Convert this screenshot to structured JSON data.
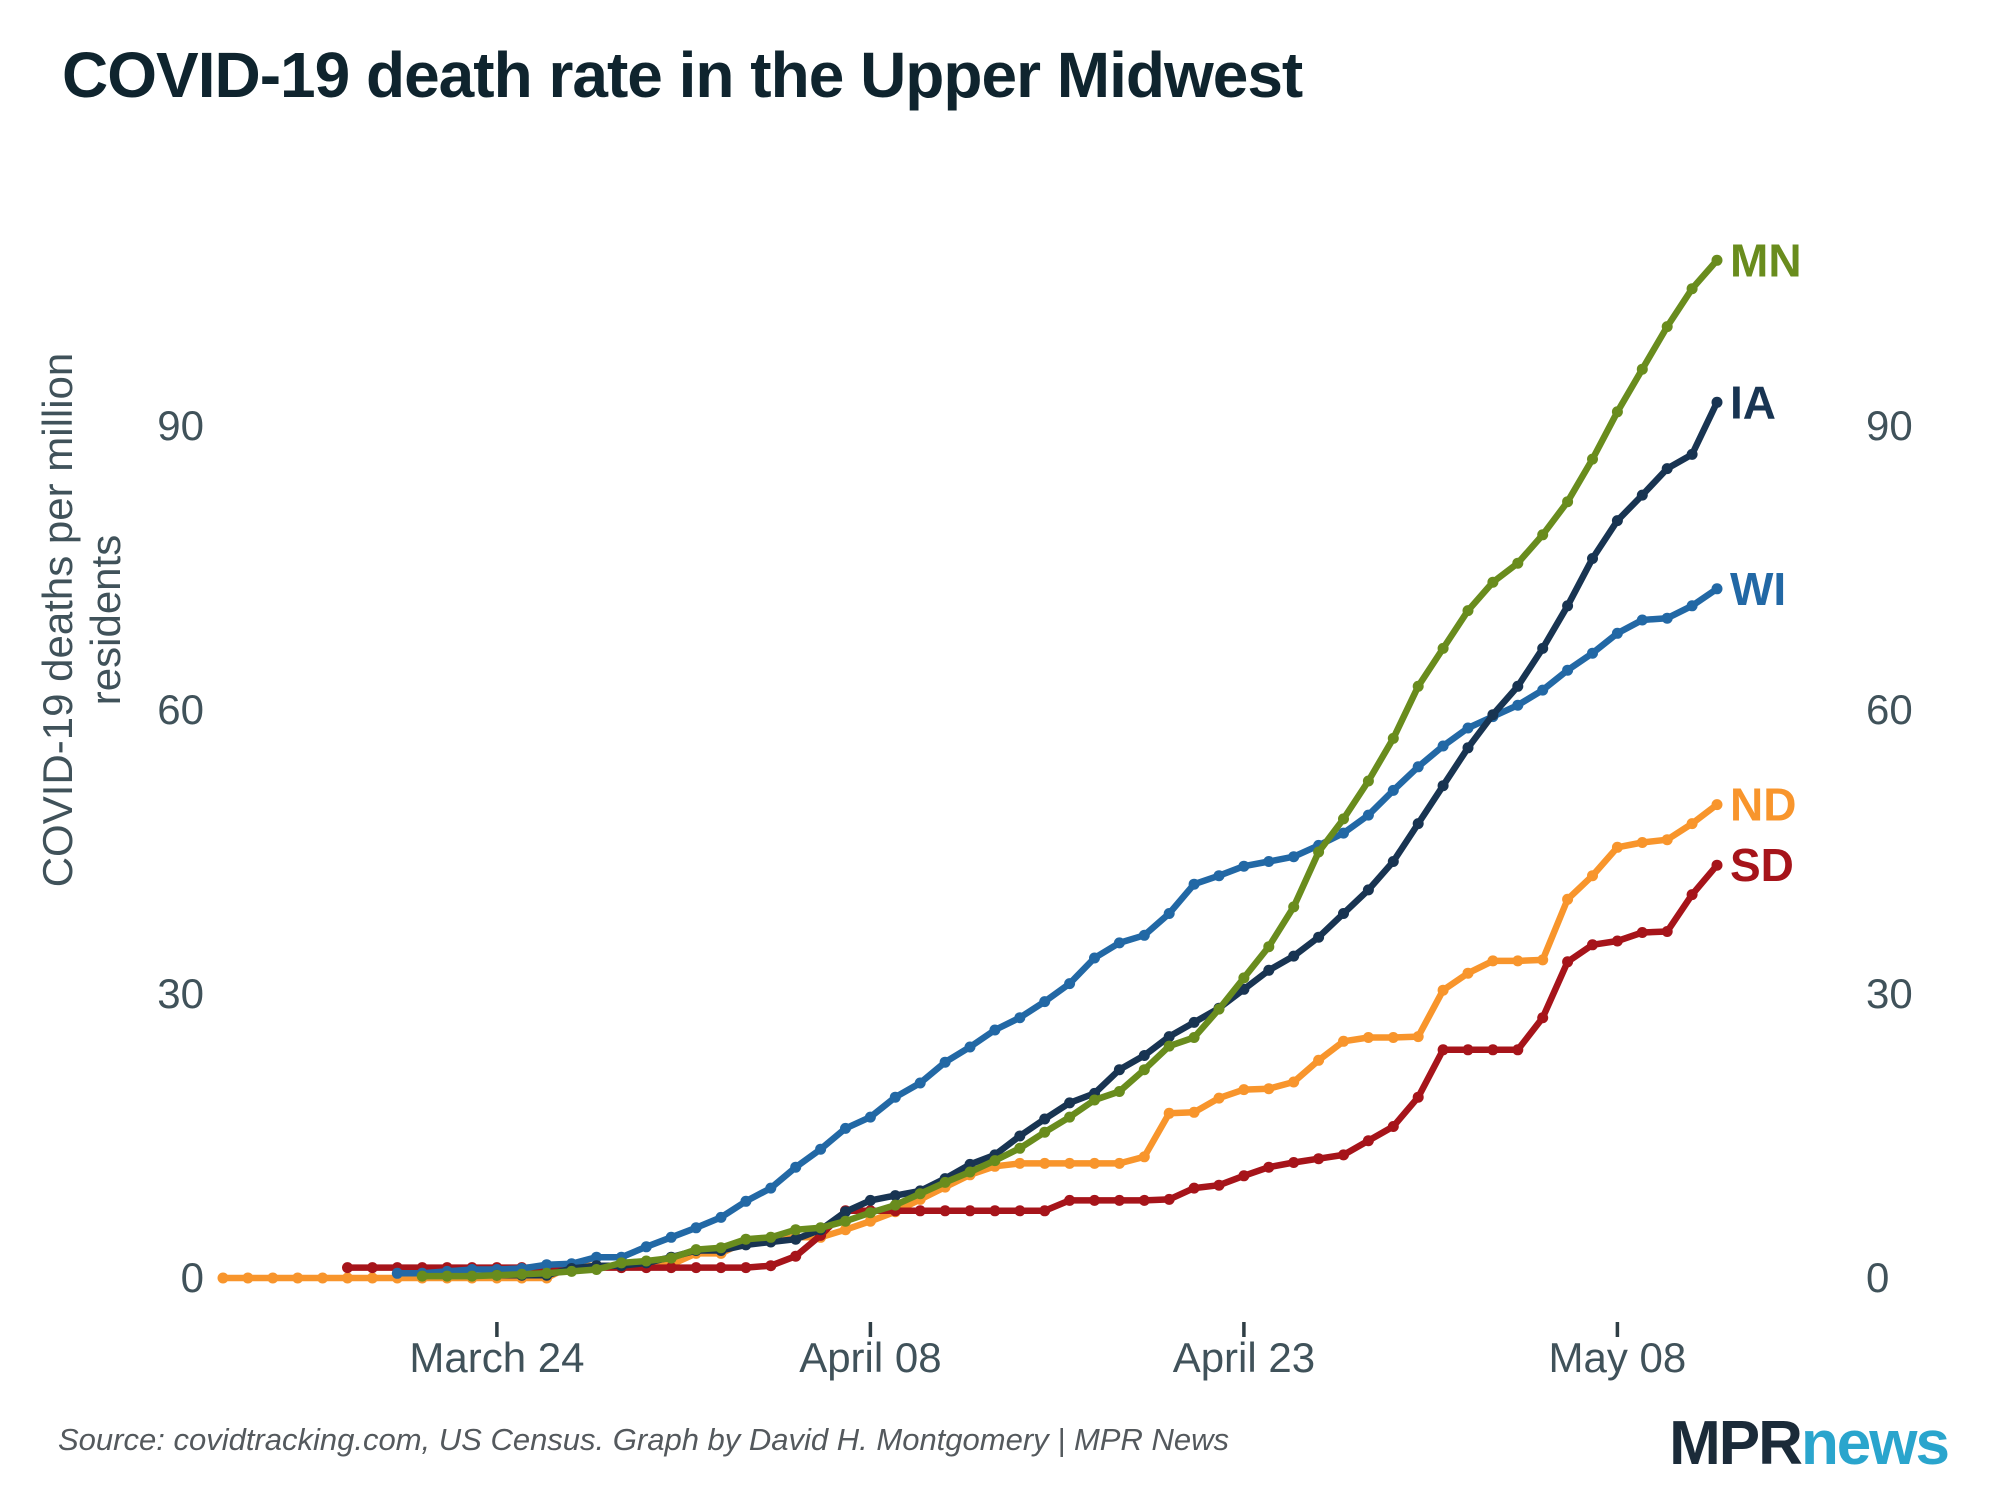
{
  "header": {
    "title": "COVID-19 death rate in the Upper Midwest"
  },
  "footer": {
    "source": "Source: covidtracking.com, US Census. Graph by David H. Montgomery | MPR News",
    "logo_mpr": "MPR",
    "logo_news": "news"
  },
  "colors": {
    "title": "#0f242e",
    "axis_text": "#40525a",
    "tick_mark": "#2f3e45",
    "source_text": "#54595d",
    "logo_mpr": "#1b2b39",
    "logo_news": "#2aa5cd"
  },
  "chart_data": {
    "type": "line",
    "title": "COVID-19 death rate in the Upper Midwest",
    "xlabel": "",
    "ylabel": "COVID-19 deaths per million residents",
    "y_ticks": [
      0,
      30,
      60,
      90
    ],
    "ylim": [
      0,
      113
    ],
    "grid": false,
    "legend_position": "end-of-line labels",
    "x_unit": "daily points, March 13 - May 12, 2020",
    "x_ticks": [
      {
        "label": "March 24",
        "day": 11
      },
      {
        "label": "April 08",
        "day": 26
      },
      {
        "label": "April 23",
        "day": 41
      },
      {
        "label": "May 08",
        "day": 56
      }
    ],
    "series": [
      {
        "name": "ND",
        "color": "#f8952c",
        "start_day": 0,
        "values": [
          0,
          0,
          0,
          0,
          0,
          0,
          0,
          0,
          0,
          0,
          0,
          0,
          0,
          0,
          1.3,
          1.3,
          1.3,
          1.3,
          1.4,
          2.6,
          2.6,
          3.9,
          3.9,
          4.3,
          4.3,
          5.1,
          6,
          7,
          8.3,
          9.6,
          10.9,
          11.8,
          12.1,
          12.1,
          12.1,
          12.1,
          12.1,
          12.8,
          17.4,
          17.5,
          19,
          19.9,
          20,
          20.7,
          23,
          25,
          25.4,
          25.4,
          25.5,
          30.4,
          32.2,
          33.5,
          33.5,
          33.6,
          40,
          42.5,
          45.5,
          46,
          46.3,
          48,
          50
        ]
      },
      {
        "name": "SD",
        "color": "#a6141a",
        "start_day": 5,
        "values": [
          1.1,
          1.1,
          1.1,
          1.1,
          1.1,
          1.1,
          1.1,
          1.1,
          1.1,
          1.1,
          1.1,
          1.1,
          1.1,
          1.1,
          1.1,
          1.1,
          1.1,
          1.3,
          2.3,
          4.5,
          7.1,
          7.1,
          7.1,
          7.1,
          7.1,
          7.1,
          7.1,
          7.1,
          7.1,
          8.2,
          8.2,
          8.2,
          8.2,
          8.3,
          9.5,
          9.8,
          10.8,
          11.7,
          12.2,
          12.6,
          13,
          14.5,
          16,
          19.1,
          24.1,
          24.1,
          24.1,
          24.1,
          27.5,
          33.4,
          35.2,
          35.6,
          36.5,
          36.6,
          40.5,
          43.6
        ]
      },
      {
        "name": "WI",
        "color": "#2268a5",
        "start_day": 7,
        "values": [
          0.5,
          0.5,
          0.7,
          0.9,
          0.9,
          1,
          1.4,
          1.5,
          2.2,
          2.2,
          3.3,
          4.3,
          5.3,
          6.4,
          8.1,
          9.5,
          11.7,
          13.6,
          15.8,
          17,
          19.1,
          20.6,
          22.8,
          24.4,
          26.2,
          27.5,
          29.2,
          31.1,
          33.8,
          35.4,
          36.2,
          38.5,
          41.6,
          42.5,
          43.5,
          44,
          44.5,
          45.7,
          47,
          48.9,
          51.5,
          54,
          56.2,
          58.1,
          59.3,
          60.5,
          62.1,
          64.2,
          66,
          68.1,
          69.5,
          69.7,
          71,
          72.8
        ]
      },
      {
        "name": "IA",
        "color": "#183452",
        "start_day": 11,
        "values": [
          0.3,
          0.3,
          0.3,
          1,
          1.3,
          1.3,
          1.6,
          2.2,
          2.9,
          2.9,
          3.5,
          3.8,
          4.1,
          5.1,
          7,
          8.2,
          8.7,
          9.2,
          10.5,
          12,
          13,
          15,
          16.8,
          18.5,
          19.5,
          22,
          23.5,
          25.5,
          27,
          28.5,
          30.5,
          32.5,
          34,
          36,
          38.5,
          41,
          44,
          48,
          52,
          56,
          59.5,
          62.5,
          66.5,
          71,
          76,
          80,
          82.7,
          85.5,
          87,
          92.5
        ]
      },
      {
        "name": "MN",
        "color": "#698c1d",
        "start_day": 8,
        "values": [
          0.2,
          0.2,
          0.2,
          0.3,
          0.4,
          0.5,
          0.7,
          0.9,
          1.6,
          1.8,
          2.1,
          3,
          3.2,
          4.1,
          4.3,
          5.1,
          5.3,
          6,
          6.9,
          7.7,
          8.9,
          10.1,
          11.2,
          12.4,
          13.7,
          15.4,
          17,
          18.8,
          19.7,
          22,
          24.5,
          25.4,
          28.4,
          31.7,
          35,
          39.2,
          45,
          48.5,
          52.5,
          57,
          62.5,
          66.5,
          70.5,
          73.5,
          75.5,
          78.5,
          82,
          86.5,
          91.5,
          96,
          100.5,
          104.5,
          107.5
        ]
      }
    ]
  }
}
